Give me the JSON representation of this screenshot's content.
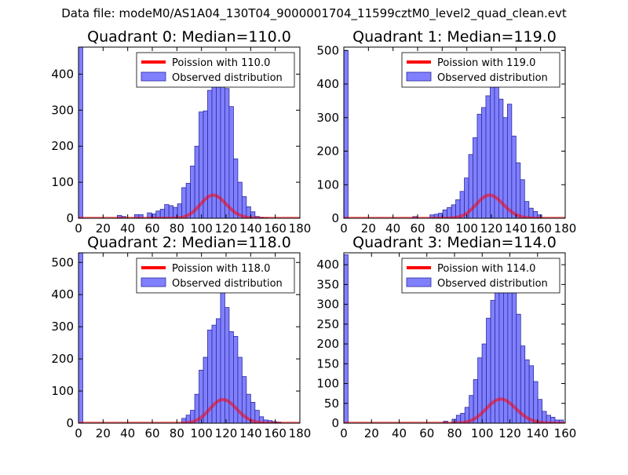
{
  "figure_title": "Data file: modeM0/AS1A04_130T04_9000001704_11599cztM0_level2_quad_clean.evt",
  "colors": {
    "bar_fill": "#8080ff",
    "bar_edge": "#2a2a9e",
    "poisson_line": "#ff0000",
    "axis": "#000000"
  },
  "chart_data": [
    {
      "type": "bar",
      "title": "Quadrant 0: Median=110.0",
      "xlim": [
        0,
        180
      ],
      "ylim": [
        0,
        475
      ],
      "xticks": [
        0,
        20,
        40,
        60,
        80,
        100,
        120,
        140,
        160,
        180
      ],
      "yticks": [
        0,
        100,
        200,
        300,
        400
      ],
      "median": 110.0,
      "legend": {
        "position": "top-right",
        "line_label": "Poission with 110.0",
        "bar_label": "Observed distribution"
      },
      "series": [
        {
          "name": "Observed distribution",
          "bin_width": 3.5,
          "bin_starts": [
            0,
            31.5,
            35,
            45.5,
            49,
            56,
            59.5,
            63,
            66.5,
            70,
            73.5,
            77,
            80.5,
            84,
            87.5,
            91,
            94.5,
            98,
            101.5,
            105,
            108.5,
            112,
            115.5,
            119,
            122.5,
            126,
            129.5,
            133,
            136.5,
            140,
            143.5,
            147,
            150.5
          ],
          "counts": [
            475,
            8,
            5,
            10,
            10,
            15,
            12,
            20,
            25,
            38,
            35,
            30,
            40,
            85,
            97,
            145,
            200,
            295,
            298,
            355,
            420,
            445,
            405,
            360,
            310,
            165,
            100,
            60,
            32,
            18,
            5,
            2,
            1
          ]
        },
        {
          "name": "Poission with 110.0",
          "mean": 110.0,
          "scale": 1685
        }
      ]
    },
    {
      "type": "bar",
      "title": "Quadrant 1: Median=119.0",
      "xlim": [
        0,
        180
      ],
      "ylim": [
        0,
        510
      ],
      "xticks": [
        0,
        20,
        40,
        60,
        80,
        100,
        120,
        140,
        160,
        180
      ],
      "yticks": [
        0,
        100,
        200,
        300,
        400,
        500
      ],
      "median": 119.0,
      "legend": {
        "position": "top-right",
        "line_label": "Poission with 119.0",
        "bar_label": "Observed distribution"
      },
      "series": [
        {
          "name": "Observed distribution",
          "bin_width": 3.5,
          "bin_starts": [
            0,
            56,
            70,
            73.5,
            77,
            80.5,
            84,
            87.5,
            91,
            94.5,
            98,
            101.5,
            105,
            108.5,
            112,
            115.5,
            119,
            122.5,
            126,
            129.5,
            133,
            136.5,
            140,
            143.5,
            147,
            150.5,
            154,
            157.5
          ],
          "counts": [
            500,
            5,
            10,
            12,
            15,
            25,
            32,
            40,
            55,
            80,
            120,
            190,
            240,
            310,
            330,
            365,
            450,
            480,
            355,
            300,
            340,
            245,
            165,
            115,
            50,
            30,
            20,
            10
          ]
        },
        {
          "name": "Poission with 119.0",
          "mean": 119.0,
          "scale": 1885
        }
      ]
    },
    {
      "type": "bar",
      "title": "Quadrant 2: Median=118.0",
      "xlim": [
        0,
        180
      ],
      "ylim": [
        0,
        530
      ],
      "xticks": [
        0,
        20,
        40,
        60,
        80,
        100,
        120,
        140,
        160,
        180
      ],
      "yticks": [
        0,
        100,
        200,
        300,
        400,
        500
      ],
      "median": 118.0,
      "legend": {
        "position": "top-right",
        "line_label": "Poission with 118.0",
        "bar_label": "Observed distribution"
      },
      "series": [
        {
          "name": "Observed distribution",
          "bin_width": 3.5,
          "bin_starts": [
            0,
            84,
            87.5,
            91,
            94.5,
            98,
            101.5,
            105,
            108.5,
            112,
            115.5,
            119,
            122.5,
            126,
            129.5,
            133,
            136.5,
            140,
            143.5,
            147,
            150.5,
            154,
            157.5,
            161
          ],
          "counts": [
            530,
            15,
            25,
            40,
            90,
            165,
            205,
            290,
            305,
            325,
            410,
            360,
            285,
            270,
            205,
            145,
            90,
            65,
            40,
            20,
            10,
            8,
            5,
            3
          ]
        },
        {
          "name": "Poission with 118.0",
          "mean": 118.0,
          "scale": 2000
        }
      ]
    },
    {
      "type": "bar",
      "title": "Quadrant 3: Median=114.0",
      "xlim": [
        0,
        160
      ],
      "ylim": [
        0,
        430
      ],
      "xticks": [
        0,
        20,
        40,
        60,
        80,
        100,
        120,
        140,
        160
      ],
      "yticks": [
        0,
        50,
        100,
        150,
        200,
        250,
        300,
        350,
        400
      ],
      "median": 114.0,
      "legend": {
        "position": "top-right",
        "line_label": "Poission with 114.0",
        "bar_label": "Observed distribution"
      },
      "series": [
        {
          "name": "Observed distribution",
          "bin_width": 3.1,
          "bin_starts": [
            0,
            72,
            78.2,
            81.3,
            84.4,
            87.5,
            90.6,
            93.7,
            96.8,
            99.9,
            103,
            106.1,
            109.2,
            112.3,
            115.4,
            118.5,
            121.6,
            124.7,
            127.8,
            130.9,
            134,
            137.1,
            140.2,
            143.3,
            146.4,
            149.5,
            152.6,
            155.7
          ],
          "counts": [
            425,
            5,
            10,
            20,
            25,
            40,
            70,
            110,
            165,
            200,
            265,
            310,
            410,
            365,
            400,
            385,
            335,
            275,
            195,
            160,
            145,
            105,
            60,
            30,
            20,
            15,
            8,
            8
          ]
        },
        {
          "name": "Poission with 114.0",
          "mean": 114.0,
          "scale": 1625
        }
      ]
    }
  ]
}
